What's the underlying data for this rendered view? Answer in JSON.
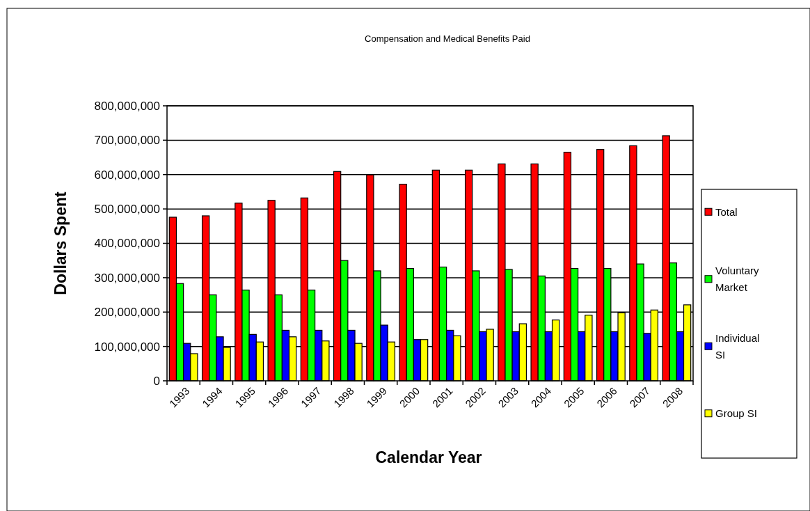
{
  "chart_data": {
    "type": "bar",
    "title": "Compensation and Medical Benefits Paid",
    "xlabel": "Calendar Year",
    "ylabel": "Dollars Spent",
    "categories": [
      "1993",
      "1994",
      "1995",
      "1996",
      "1997",
      "1998",
      "1999",
      "2000",
      "2001",
      "2002",
      "2003",
      "2004",
      "2005",
      "2006",
      "2007",
      "2008"
    ],
    "series": [
      {
        "name": "Total",
        "color": "#ff0000",
        "values": [
          476000000,
          480000000,
          517000000,
          525000000,
          532000000,
          609000000,
          599000000,
          572000000,
          613000000,
          613000000,
          631000000,
          631000000,
          665000000,
          673000000,
          684000000,
          713000000
        ]
      },
      {
        "name": "Voluntary Market",
        "color": "#00ff00",
        "values": [
          283000000,
          250000000,
          264000000,
          250000000,
          264000000,
          350000000,
          320000000,
          327000000,
          331000000,
          320000000,
          324000000,
          305000000,
          327000000,
          327000000,
          340000000,
          343000000
        ]
      },
      {
        "name": "Individual SI",
        "color": "#0000ff",
        "values": [
          109000000,
          128000000,
          135000000,
          147000000,
          147000000,
          147000000,
          162000000,
          120000000,
          147000000,
          143000000,
          143000000,
          143000000,
          143000000,
          143000000,
          138000000,
          143000000
        ]
      },
      {
        "name": "Group SI",
        "color": "#ffff00",
        "values": [
          79000000,
          97000000,
          113000000,
          128000000,
          116000000,
          109000000,
          113000000,
          120000000,
          131000000,
          150000000,
          166000000,
          177000000,
          191000000,
          198000000,
          206000000,
          221000000
        ]
      }
    ],
    "ylim": [
      0,
      800000000
    ],
    "yticks": [
      {
        "value": 0,
        "label": "0"
      },
      {
        "value": 100000000,
        "label": "100,000,000"
      },
      {
        "value": 200000000,
        "label": "200,000,000"
      },
      {
        "value": 300000000,
        "label": "300,000,000"
      },
      {
        "value": 400000000,
        "label": "400,000,000"
      },
      {
        "value": 500000000,
        "label": "500,000,000"
      },
      {
        "value": 600000000,
        "label": "600,000,000"
      },
      {
        "value": 700000000,
        "label": "700,000,000"
      },
      {
        "value": 800000000,
        "label": "800,000,000"
      }
    ],
    "grid": "y",
    "legend": "right"
  }
}
